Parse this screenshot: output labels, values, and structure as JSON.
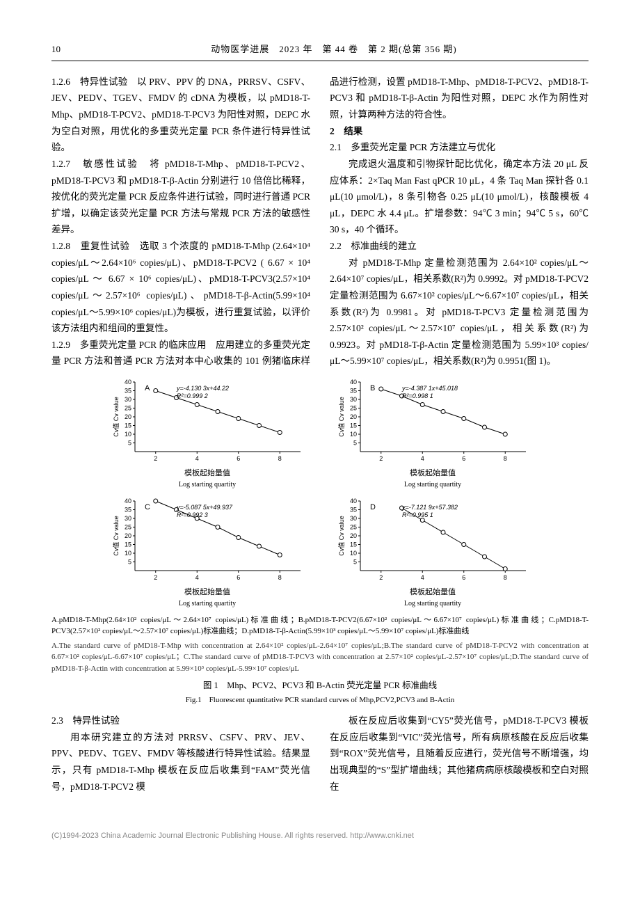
{
  "header": {
    "page_number": "10",
    "journal": "动物医学进展　2023 年　第 44 卷　第 2 期(总第 356 期)"
  },
  "body": {
    "p126": "1.2.6　特异性试验　以 PRV、PPV 的 DNA，PRRSV、CSFV、JEV、PEDV、TGEV、FMDV 的 cDNA 为模板，以 pMD18-T-Mhp、pMD18-T-PCV2、pMD18-T-PCV3 为阳性对照，DEPC 水为空白对照，用优化的多重荧光定量 PCR 条件进行特异性试验。",
    "p127": "1.2.7　敏感性试验　将 pMD18-T-Mhp、pMD18-T-PCV2、pMD18-T-PCV3 和 pMD18-T-β-Actin 分别进行 10 倍倍比稀释，按优化的荧光定量 PCR 反应条件进行试验，同时进行普通 PCR 扩增，以确定该荧光定量 PCR 方法与常规 PCR 方法的敏感性差异。",
    "p128": "1.2.8　重复性试验　选取 3 个浓度的 pMD18-T-Mhp (2.64×10⁴ copies/μL～2.64×10⁶ copies/μL)、pMD18-T-PCV2 ( 6.67 × 10⁴ copies/μL ～ 6.67 × 10⁶ copies/μL)、pMD18-T-PCV3(2.57×10⁴ copies/μL～2.57×10⁶ copies/μL)、pMD18-T-β-Actin(5.99×10⁴ copies/μL～5.99×10⁶ copies/μL)为模板，进行重复试验，以评价该方法组内和组间的重复性。",
    "p129": "1.2.9　多重荧光定量 PCR 的临床应用　应用建立的多重荧光定量 PCR 方法和普通 PCR 方法对本中心收集的 101 例猪临床样品进行检测，设置 pMD18-T-Mhp、pMD18-T-PCV2、pMD18-T-PCV3 和 pMD18-T-β-Actin 为阳性对照，DEPC 水作为阴性对照，计算两种方法的符合性。",
    "h2": "2　结果",
    "h21": "2.1　多重荧光定量 PCR 方法建立与优化",
    "p21": "完成退火温度和引物探针配比优化，确定本方法 20 μL 反应体系：2×Taq Man Fast qPCR 10 μL，4 条 Taq Man 探针各 0.1 μL(10 μmol/L)，8 条引物各 0.25 μL(10 μmol/L)，核酸模板 4 μL，DEPC 水 4.4 μL。扩增参数：94℃ 3 min；94℃ 5 s，60℃ 30 s，40 个循环。",
    "h22": "2.2　标准曲线的建立",
    "p22": "对 pMD18-T-Mhp 定量检测范围为 2.64×10² copies/μL～2.64×10⁷ copies/μL，相关系数(R²)为 0.9992。对 pMD18-T-PCV2 定量检测范围为 6.67×10² copies/μL～6.67×10⁷ copies/μL，相关系数(R²)为 0.9981。对 pMD18-T-PCV3 定量检测范围为 2.57×10² copies/μL～2.57×10⁷ copies/μL，相关系数(R²)为 0.9923。对 pMD18-T-β-Actin 定量检测范围为 5.99×10³ copies/μL～5.99×10⁷ copies/μL，相关系数(R²)为 0.9951(图 1)。"
  },
  "figure": {
    "charts": [
      {
        "panel": "A",
        "equation": "y=-4.130 3x+44.22",
        "r2": "R²=0.999 2",
        "xvals": [
          2,
          3,
          4,
          5,
          6,
          7,
          8
        ],
        "yvals": [
          35,
          31,
          27,
          23,
          19,
          15,
          11
        ],
        "ylabel_cn": "Cv值 Cv value",
        "xlabel_cn": "模板起始量值",
        "xlabel_en": "Log starting quartity",
        "ylim": [
          0,
          40
        ],
        "yticks": [
          5,
          10,
          15,
          20,
          25,
          30,
          35,
          40
        ],
        "xlim": [
          1,
          9
        ],
        "xticks": [
          2,
          4,
          6,
          8
        ],
        "line_color": "#000000",
        "marker_fill": "#ffffff",
        "background_color": "#ffffff"
      },
      {
        "panel": "B",
        "equation": "y=-4.387 1x+45.018",
        "r2": "R²=0.998 1",
        "xvals": [
          2,
          3,
          4,
          5,
          6,
          7,
          8
        ],
        "yvals": [
          36,
          32,
          27,
          23,
          19,
          14,
          10
        ],
        "ylabel_cn": "Cv值 Cv value",
        "xlabel_cn": "模板起始量值",
        "xlabel_en": "Log starting quartity",
        "ylim": [
          0,
          40
        ],
        "yticks": [
          5,
          10,
          15,
          20,
          25,
          30,
          35,
          40
        ],
        "xlim": [
          1,
          9
        ],
        "xticks": [
          2,
          4,
          6,
          8
        ],
        "line_color": "#000000",
        "marker_fill": "#ffffff",
        "background_color": "#ffffff"
      },
      {
        "panel": "C",
        "equation": "y=-5.087 5x+49.937",
        "r2": "R²=0.992 3",
        "xvals": [
          2,
          3,
          4,
          5,
          6,
          7,
          8
        ],
        "yvals": [
          40,
          35,
          30,
          25,
          19,
          14,
          9
        ],
        "ylabel_cn": "Cv值 Cv value",
        "xlabel_cn": "模板起始量值",
        "xlabel_en": "Log starting quartity",
        "ylim": [
          0,
          40
        ],
        "yticks": [
          5,
          10,
          15,
          20,
          25,
          30,
          35,
          40
        ],
        "xlim": [
          1,
          9
        ],
        "xticks": [
          2,
          4,
          6,
          8
        ],
        "line_color": "#000000",
        "marker_fill": "#ffffff",
        "background_color": "#ffffff"
      },
      {
        "panel": "D",
        "equation": "y=-7.121 9x+57.382",
        "r2": "R²=0.995 1",
        "xvals": [
          3,
          4,
          5,
          6,
          7,
          8
        ],
        "yvals": [
          36,
          29,
          22,
          15,
          8,
          1
        ],
        "ylabel_cn": "Cv值 Cv value",
        "xlabel_cn": "模板起始量值",
        "xlabel_en": "Log starting quartity",
        "ylim": [
          0,
          40
        ],
        "yticks": [
          5,
          10,
          15,
          20,
          25,
          30,
          35,
          40
        ],
        "xlim": [
          1,
          9
        ],
        "xticks": [
          2,
          4,
          6,
          8
        ],
        "line_color": "#000000",
        "marker_fill": "#ffffff",
        "background_color": "#ffffff"
      }
    ],
    "caption_cn": "A.pMD18-T-Mhp(2.64×10² copies/μL～2.64×10⁷ copies/μL)标准曲线；B.pMD18-T-PCV2(6.67×10² copies/μL～6.67×10⁷ copies/μL)标准曲线；C.pMD18-T-PCV3(2.57×10² copies/μL～2.57×10⁷ copies/μL)标准曲线；D.pMD18-T-β-Actin(5.99×10³ copies/μL～5.99×10⁷ copies/μL)标准曲线",
    "caption_en": "A.The standard curve of pMD18-T-Mhp with concentration at 2.64×10² copies/μL-2.64×10⁷ copies/μL;B.The standard curve of pMD18-T-PCV2 with concentration at 6.67×10² copies/μL-6.67×10⁷ copies/μL；C.The standard curve of pMD18-T-PCV3 with concentration at 2.57×10² copies/μL-2.57×10⁷ copies/μL;D.The standard curve of pMD18-T-β-Actin with concentration at 5.99×10³ copies/μL-5.99×10⁷ copies/μL",
    "title_cn": "图 1　Mhp、PCV2、PCV3 和 B-Actin 荧光定量 PCR 标准曲线",
    "title_en": "Fig.1　Fluorescent quantitative PCR standard curves of Mhp,PCV2,PCV3 and B-Actin"
  },
  "body2": {
    "h23": "2.3　特异性试验",
    "p23a": "用本研究建立的方法对 PRRSV、CSFV、PRV、JEV、PPV、PEDV、TGEV、FMDV 等核酸进行特异性试验。结果显示，只有 pMD18-T-Mhp 模板在反应后收集到“FAM”荧光信号，pMD18-T-PCV2 模",
    "p23b": "板在反应后收集到“CY5”荧光信号，pMD18-T-PCV3 模板在反应后收集到“VIC”荧光信号，所有病原核酸在反应后收集到“ROX”荧光信号，且随着反应进行，荧光信号不断增强，均出现典型的“S”型扩增曲线；其他猪病病原核酸模板和空白对照在"
  },
  "footer": "(C)1994-2023 China Academic Journal Electronic Publishing House. All rights reserved.    http://www.cnki.net"
}
